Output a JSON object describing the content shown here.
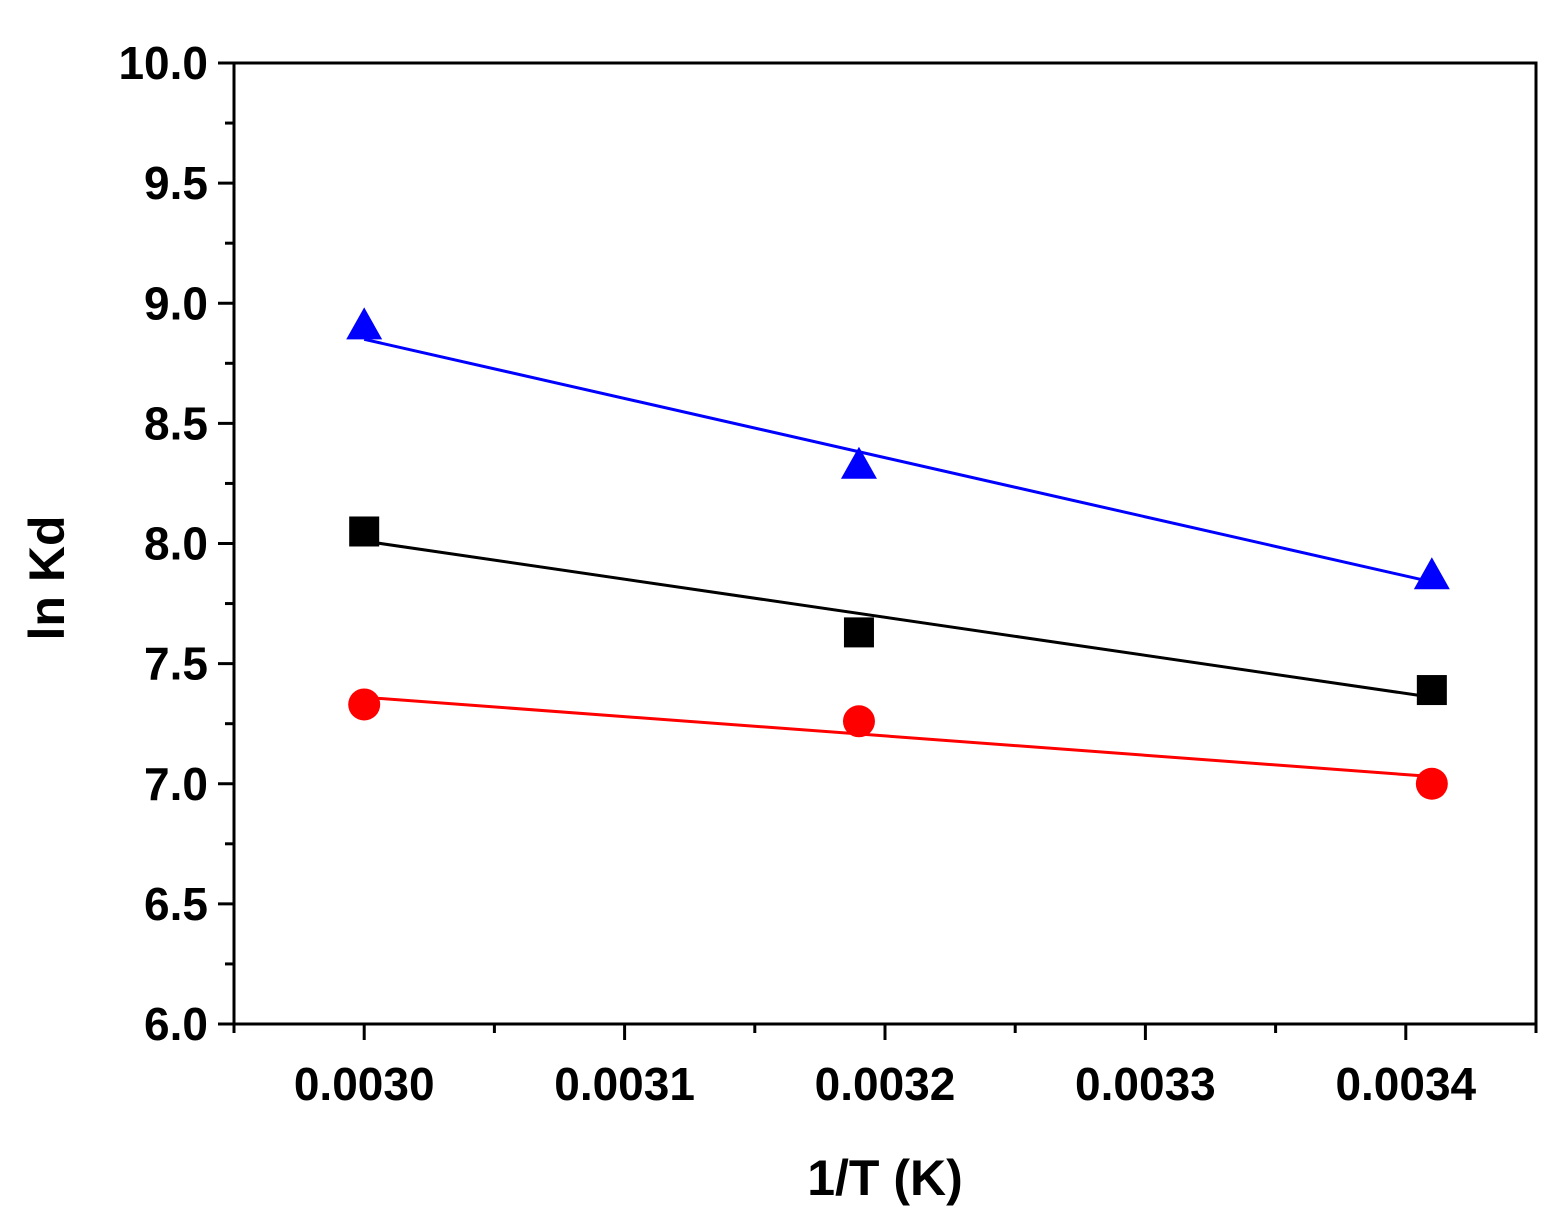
{
  "chart_data": {
    "type": "scatter",
    "title": "",
    "xlabel": "1/T (K)",
    "ylabel": "ln Kd",
    "xlim": [
      0.00295,
      0.00345
    ],
    "ylim": [
      6.0,
      10.0
    ],
    "x_ticks": [
      {
        "value": 0.003,
        "label": "0.0030"
      },
      {
        "value": 0.0031,
        "label": "0.0031"
      },
      {
        "value": 0.0032,
        "label": "0.0032"
      },
      {
        "value": 0.0033,
        "label": "0.0033"
      },
      {
        "value": 0.0034,
        "label": "0.0034"
      }
    ],
    "y_ticks": [
      {
        "value": 6.0,
        "label": "6.0"
      },
      {
        "value": 6.5,
        "label": "6.5"
      },
      {
        "value": 7.0,
        "label": "7.0"
      },
      {
        "value": 7.5,
        "label": "7.5"
      },
      {
        "value": 8.0,
        "label": "8.0"
      },
      {
        "value": 8.5,
        "label": "8.5"
      },
      {
        "value": 9.0,
        "label": "9.0"
      },
      {
        "value": 9.5,
        "label": "9.5"
      },
      {
        "value": 10.0,
        "label": "10.0"
      }
    ],
    "grid": false,
    "series": [
      {
        "name": "square",
        "marker": "square",
        "color": "#000000",
        "x": [
          0.003,
          0.00319,
          0.00341
        ],
        "y": [
          8.05,
          7.63,
          7.39
        ],
        "fit": {
          "x": [
            0.003,
            0.00341
          ],
          "y": [
            8.01,
            7.36
          ]
        }
      },
      {
        "name": "circle",
        "marker": "circle",
        "color": "#ff0000",
        "x": [
          0.003,
          0.00319,
          0.00341
        ],
        "y": [
          7.33,
          7.26,
          7.0
        ],
        "fit": {
          "x": [
            0.003,
            0.00341
          ],
          "y": [
            7.36,
            7.03
          ]
        }
      },
      {
        "name": "triangle",
        "marker": "triangle",
        "color": "#0000ff",
        "x": [
          0.003,
          0.00319,
          0.00341
        ],
        "y": [
          8.9,
          8.32,
          7.86
        ],
        "fit": {
          "x": [
            0.003,
            0.00341
          ],
          "y": [
            8.85,
            7.84
          ]
        }
      }
    ]
  }
}
